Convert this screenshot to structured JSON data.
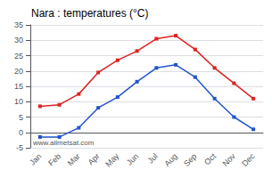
{
  "chart_data": {
    "type": "line",
    "title": "Nara : temperatures (°C)",
    "categories": [
      "Jan",
      "Feb",
      "Mar",
      "Apr",
      "May",
      "Jun",
      "Jul",
      "Aug",
      "Sep",
      "Oct",
      "Nov",
      "Dec"
    ],
    "series": [
      {
        "color": "#dd2222",
        "values": [
          8.5,
          9.0,
          12.5,
          19.5,
          23.5,
          26.5,
          30.5,
          31.5,
          27.0,
          21.0,
          16.0,
          11.0
        ]
      },
      {
        "color": "#2255cc",
        "values": [
          -1.5,
          -1.5,
          1.5,
          8.0,
          11.5,
          16.5,
          21.0,
          22.0,
          18.0,
          11.0,
          5.0,
          1.0
        ]
      }
    ],
    "marker": "square",
    "line_style": "solid",
    "ylim": [
      -5,
      35
    ],
    "yticks": [
      -5,
      0,
      5,
      10,
      15,
      20,
      25,
      30,
      35
    ],
    "grid": true,
    "annotation": "www.allmetsat.com"
  }
}
